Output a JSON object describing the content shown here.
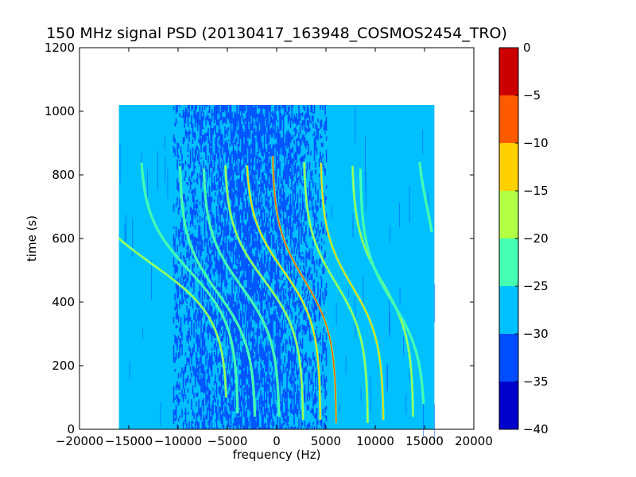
{
  "chart_data": {
    "type": "heatmap",
    "title": "150 MHz signal PSD (20130417_163948_COSMOS2454_TRO)",
    "xlabel": "frequency (Hz)",
    "ylabel": "time (s)",
    "xlim": [
      -20000,
      20000
    ],
    "ylim": [
      0,
      1200
    ],
    "xticks": [
      -20000,
      -15000,
      -10000,
      -5000,
      0,
      5000,
      10000,
      15000,
      20000
    ],
    "yticks": [
      0,
      200,
      400,
      600,
      800,
      1000,
      1200
    ],
    "grid": false,
    "data_extent": {
      "x": [
        -16000,
        16000
      ],
      "y": [
        0,
        1020
      ]
    },
    "colorbar": {
      "ticks": [
        0,
        -5,
        -10,
        -15,
        -20,
        -25,
        -30,
        -35,
        -40
      ],
      "levels": [
        {
          "from": -40,
          "to": -35,
          "color": "#0000cd"
        },
        {
          "from": -35,
          "to": -30,
          "color": "#004dff"
        },
        {
          "from": -30,
          "to": -25,
          "color": "#00c0ff"
        },
        {
          "from": -25,
          "to": -20,
          "color": "#45ffb2"
        },
        {
          "from": -20,
          "to": -15,
          "color": "#b2ff45"
        },
        {
          "from": -15,
          "to": -10,
          "color": "#ffd100"
        },
        {
          "from": -10,
          "to": -5,
          "color": "#ff5a00"
        },
        {
          "from": -5,
          "to": 0,
          "color": "#cd0000"
        }
      ]
    },
    "background_level": -27.5,
    "noise_band": {
      "x": [
        -10500,
        5000
      ],
      "level": -32.5
    },
    "tracks": [
      {
        "x_bottom": -9300,
        "t_mid": 520,
        "x_top": -16000,
        "t_top": 600,
        "t_bottom": 100,
        "peak": -17.5
      },
      {
        "x_bottom": -4100,
        "t_mid": 500,
        "x_top": -13700,
        "t_top": 840,
        "t_bottom": 50,
        "peak": -22.5
      },
      {
        "x_bottom": -2200,
        "t_mid": 430,
        "x_top": -9800,
        "t_top": 830,
        "t_bottom": 40,
        "peak": -22.5
      },
      {
        "x_bottom": 200,
        "t_mid": 450,
        "x_top": -7400,
        "t_top": 820,
        "t_bottom": 40,
        "peak": -22.5
      },
      {
        "x_bottom": 2600,
        "t_mid": 470,
        "x_top": -5200,
        "t_top": 830,
        "t_bottom": 30,
        "peak": -17.5
      },
      {
        "x_bottom": 4300,
        "t_mid": 500,
        "x_top": -3000,
        "t_top": 830,
        "t_bottom": 30,
        "peak": -12.5
      },
      {
        "x_bottom": 6000,
        "t_mid": 470,
        "x_top": -400,
        "t_top": 860,
        "t_bottom": 20,
        "peak": -7.5
      },
      {
        "x_bottom": 9200,
        "t_mid": 460,
        "x_top": 2800,
        "t_top": 840,
        "t_bottom": 20,
        "peak": -17.5
      },
      {
        "x_bottom": 10800,
        "t_mid": 450,
        "x_top": 4500,
        "t_top": 840,
        "t_bottom": 30,
        "peak": -12.5
      },
      {
        "x_bottom": 13800,
        "t_mid": 460,
        "x_top": 7700,
        "t_top": 830,
        "t_bottom": 40,
        "peak": -17.5
      },
      {
        "x_bottom": 15000,
        "t_mid": 400,
        "x_top": 8500,
        "t_top": 820,
        "t_bottom": 80,
        "peak": -22.5
      },
      {
        "x_bottom": 16000,
        "t_mid": 700,
        "x_top": 14500,
        "t_top": 840,
        "t_bottom": 620,
        "peak": -22.5
      }
    ]
  }
}
